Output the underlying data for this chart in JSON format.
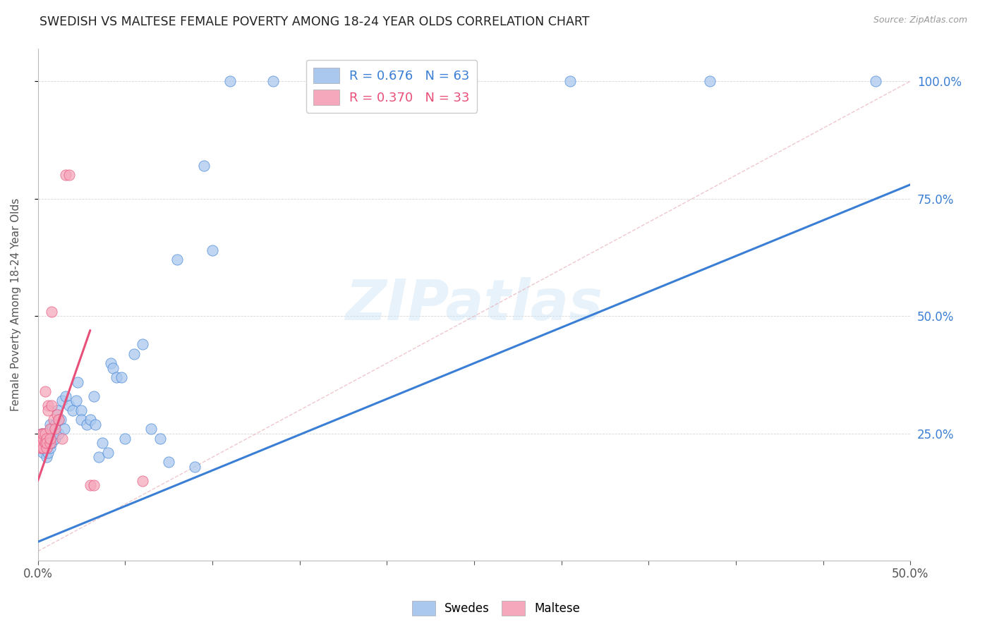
{
  "title": "SWEDISH VS MALTESE FEMALE POVERTY AMONG 18-24 YEAR OLDS CORRELATION CHART",
  "source": "Source: ZipAtlas.com",
  "ylabel": "Female Poverty Among 18-24 Year Olds",
  "ytick_right": [
    "25.0%",
    "50.0%",
    "75.0%",
    "100.0%"
  ],
  "ytick_right_vals": [
    0.25,
    0.5,
    0.75,
    1.0
  ],
  "xlim": [
    0,
    0.5
  ],
  "ylim": [
    -0.02,
    1.07
  ],
  "legend_blue_r": "R = 0.676",
  "legend_blue_n": "N = 63",
  "legend_pink_r": "R = 0.370",
  "legend_pink_n": "N = 33",
  "watermark": "ZIPatlas",
  "blue_color": "#aac8ee",
  "pink_color": "#f5a8bb",
  "line_blue": "#3a7fd5",
  "line_pink": "#e8507a",
  "swedes_x": [
    0.001,
    0.002,
    0.002,
    0.002,
    0.003,
    0.003,
    0.003,
    0.004,
    0.004,
    0.004,
    0.005,
    0.005,
    0.005,
    0.006,
    0.006,
    0.006,
    0.007,
    0.007,
    0.007,
    0.008,
    0.008,
    0.009,
    0.01,
    0.01,
    0.011,
    0.012,
    0.012,
    0.013,
    0.014,
    0.015,
    0.016,
    0.018,
    0.02,
    0.022,
    0.023,
    0.025,
    0.025,
    0.028,
    0.03,
    0.032,
    0.033,
    0.035,
    0.037,
    0.04,
    0.042,
    0.043,
    0.045,
    0.048,
    0.05,
    0.055,
    0.06,
    0.065,
    0.07,
    0.075,
    0.08,
    0.09,
    0.095,
    0.1,
    0.11,
    0.135,
    0.305,
    0.385,
    0.48
  ],
  "swedes_y": [
    0.24,
    0.22,
    0.25,
    0.23,
    0.22,
    0.24,
    0.21,
    0.23,
    0.25,
    0.22,
    0.24,
    0.22,
    0.2,
    0.25,
    0.23,
    0.21,
    0.27,
    0.24,
    0.22,
    0.26,
    0.23,
    0.25,
    0.27,
    0.24,
    0.3,
    0.28,
    0.25,
    0.28,
    0.32,
    0.26,
    0.33,
    0.31,
    0.3,
    0.32,
    0.36,
    0.3,
    0.28,
    0.27,
    0.28,
    0.33,
    0.27,
    0.2,
    0.23,
    0.21,
    0.4,
    0.39,
    0.37,
    0.37,
    0.24,
    0.42,
    0.44,
    0.26,
    0.24,
    0.19,
    0.62,
    0.18,
    0.82,
    0.64,
    1.0,
    1.0,
    1.0,
    1.0,
    1.0
  ],
  "maltese_x": [
    0.001,
    0.001,
    0.001,
    0.002,
    0.002,
    0.002,
    0.002,
    0.003,
    0.003,
    0.003,
    0.004,
    0.004,
    0.004,
    0.005,
    0.005,
    0.005,
    0.006,
    0.006,
    0.007,
    0.007,
    0.007,
    0.008,
    0.008,
    0.009,
    0.01,
    0.011,
    0.012,
    0.014,
    0.016,
    0.018,
    0.03,
    0.032,
    0.06
  ],
  "maltese_y": [
    0.23,
    0.22,
    0.24,
    0.22,
    0.24,
    0.25,
    0.23,
    0.24,
    0.22,
    0.25,
    0.23,
    0.34,
    0.25,
    0.24,
    0.22,
    0.23,
    0.31,
    0.3,
    0.26,
    0.23,
    0.24,
    0.31,
    0.51,
    0.28,
    0.26,
    0.29,
    0.28,
    0.24,
    0.8,
    0.8,
    0.14,
    0.14,
    0.15
  ],
  "blue_line_x": [
    0.0,
    0.5
  ],
  "blue_line_y": [
    0.02,
    0.78
  ],
  "pink_line_x": [
    0.0,
    0.03
  ],
  "pink_line_y": [
    0.15,
    0.47
  ],
  "diag_line_x": [
    0.0,
    0.5
  ],
  "diag_line_y": [
    0.0,
    1.0
  ]
}
